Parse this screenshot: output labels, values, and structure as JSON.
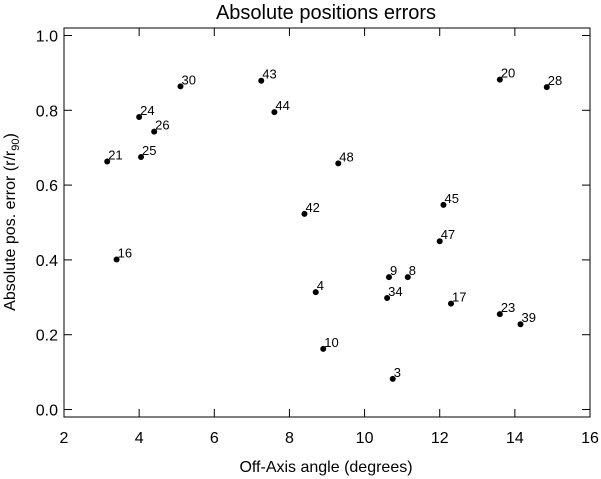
{
  "chart_data": {
    "type": "scatter",
    "title": "Absolute positions errors",
    "xlabel": "Off-Axis angle (degrees)",
    "ylabel_main": "Absolute pos. error (r/r",
    "ylabel_sub": "90",
    "ylabel_close": ")",
    "xlim": [
      2,
      16
    ],
    "ylim": [
      -0.02,
      1.02
    ],
    "xticks": [
      2,
      4,
      6,
      8,
      10,
      12,
      14,
      16
    ],
    "yticks": [
      0.0,
      0.2,
      0.4,
      0.6,
      0.8,
      1.0
    ],
    "ytick_labels": [
      "0.0",
      "0.2",
      "0.4",
      "0.6",
      "0.8",
      "1.0"
    ],
    "grid": false,
    "marker_color": "#000000",
    "points": [
      {
        "label": "30",
        "x": 5.1,
        "y": 0.864
      },
      {
        "label": "43",
        "x": 7.25,
        "y": 0.879
      },
      {
        "label": "24",
        "x": 4.0,
        "y": 0.782
      },
      {
        "label": "44",
        "x": 7.6,
        "y": 0.795
      },
      {
        "label": "26",
        "x": 4.4,
        "y": 0.743
      },
      {
        "label": "21",
        "x": 3.15,
        "y": 0.663
      },
      {
        "label": "25",
        "x": 4.05,
        "y": 0.675
      },
      {
        "label": "48",
        "x": 9.3,
        "y": 0.658
      },
      {
        "label": "42",
        "x": 8.4,
        "y": 0.523
      },
      {
        "label": "16",
        "x": 3.4,
        "y": 0.401
      },
      {
        "label": "4",
        "x": 8.7,
        "y": 0.314
      },
      {
        "label": "10",
        "x": 8.9,
        "y": 0.162
      },
      {
        "label": "9",
        "x": 10.65,
        "y": 0.354
      },
      {
        "label": "8",
        "x": 11.15,
        "y": 0.354
      },
      {
        "label": "34",
        "x": 10.6,
        "y": 0.298
      },
      {
        "label": "3",
        "x": 10.75,
        "y": 0.082
      },
      {
        "label": "45",
        "x": 12.1,
        "y": 0.547
      },
      {
        "label": "47",
        "x": 12.0,
        "y": 0.45
      },
      {
        "label": "17",
        "x": 12.3,
        "y": 0.283
      },
      {
        "label": "20",
        "x": 13.6,
        "y": 0.882
      },
      {
        "label": "28",
        "x": 14.85,
        "y": 0.862
      },
      {
        "label": "23",
        "x": 13.6,
        "y": 0.255
      },
      {
        "label": "39",
        "x": 14.15,
        "y": 0.228
      }
    ]
  }
}
